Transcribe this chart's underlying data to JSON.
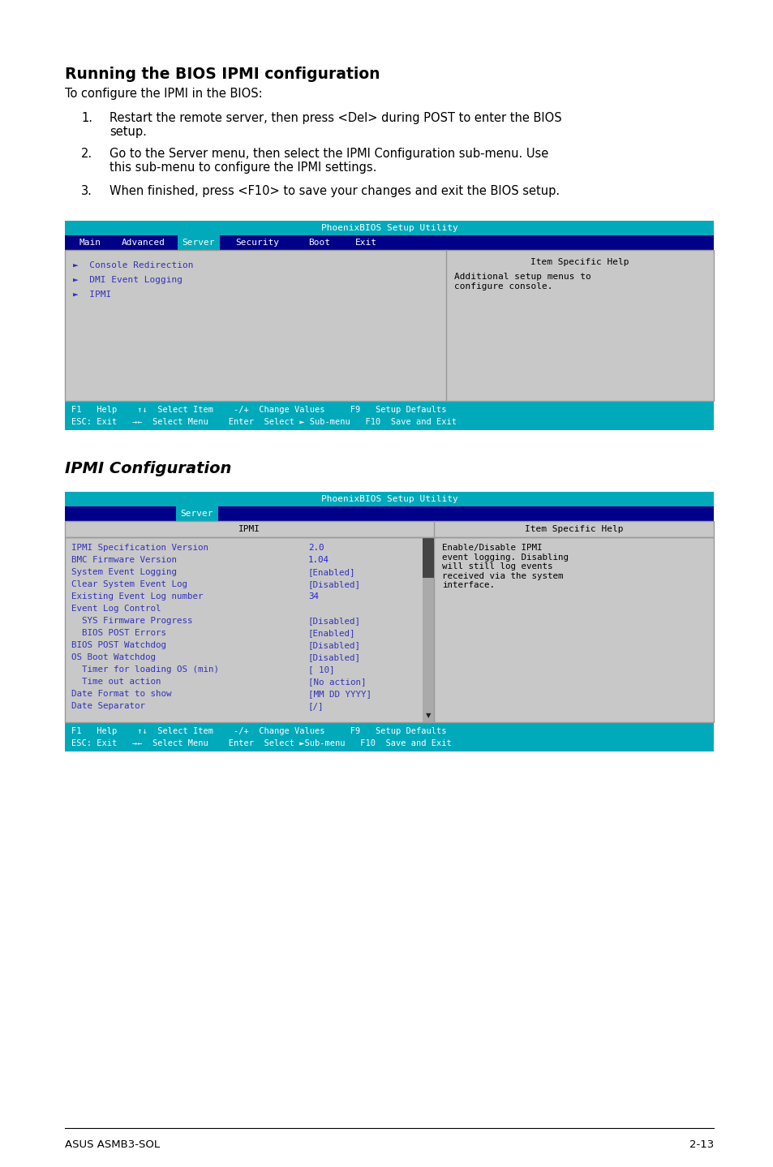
{
  "page_bg": "#ffffff",
  "title1": "Running the BIOS IPMI configuration",
  "subtitle1": "To configure the IPMI in the BIOS:",
  "steps": [
    "Restart the remote server, then press <Del> during POST to enter the BIOS\nsetup.",
    "Go to the Server menu, then select the IPMI Configuration sub-menu. Use\nthis sub-menu to configure the IPMI settings.",
    "When finished, press <F10> to save your changes and exit the BIOS setup."
  ],
  "title2": "IPMI Configuration",
  "bios_title_bg": "#00aabb",
  "bios_title_text": "PhoenixBIOS Setup Utility",
  "bios_nav_bg": "#000088",
  "bios_content_bg": "#c8c8c8",
  "bios_menu_items1": [
    "►  Console Redirection",
    "►  DMI Event Logging",
    "►  IPMI"
  ],
  "bios_help_title1": "Item Specific Help",
  "bios_help_text1": "Additional setup menus to\nconfigure console.",
  "bios_footer_bg": "#00aabb",
  "bios2_title_text": "PhoenixBIOS Setup Utility",
  "bios2_header_col1": "IPMI",
  "bios2_header_col2": "Item Specific Help",
  "bios2_rows": [
    [
      "IPMI Specification Version",
      "2.0",
      "normal"
    ],
    [
      "BMC Firmware Version",
      "1.04",
      "normal"
    ],
    [
      "System Event Logging",
      "[Enabled]",
      "normal"
    ],
    [
      "Clear System Event Log",
      "[Disabled]",
      "normal"
    ],
    [
      "Existing Event Log number",
      "34",
      "normal"
    ],
    [
      "Event Log Control",
      "",
      "normal"
    ],
    [
      "  SYS Firmware Progress",
      "[Disabled]",
      "normal"
    ],
    [
      "  BIOS POST Errors",
      "[Enabled]",
      "normal"
    ],
    [
      "BIOS POST Watchdog",
      "[Disabled]",
      "normal"
    ],
    [
      "OS Boot Watchdog",
      "[Disabled]",
      "normal"
    ],
    [
      "  Timer for loading OS (min)",
      "[ 10]",
      "normal"
    ],
    [
      "  Time out action",
      "[No action]",
      "normal"
    ],
    [
      "Date Format to show",
      "[MM DD YYYY]",
      "normal"
    ],
    [
      "Date Separator",
      "[/]",
      "normal"
    ]
  ],
  "bios2_help_text": "Enable/Disable IPMI\nevent logging. Disabling\nwill still log events\nreceived via the system\ninterface.",
  "footer_left": "ASUS ASMB3-SOL",
  "footer_right": "2-13",
  "text_blue": "#3333bb",
  "val_bright_blue": "#2222dd",
  "nav_selected_bg": "#00aabb"
}
